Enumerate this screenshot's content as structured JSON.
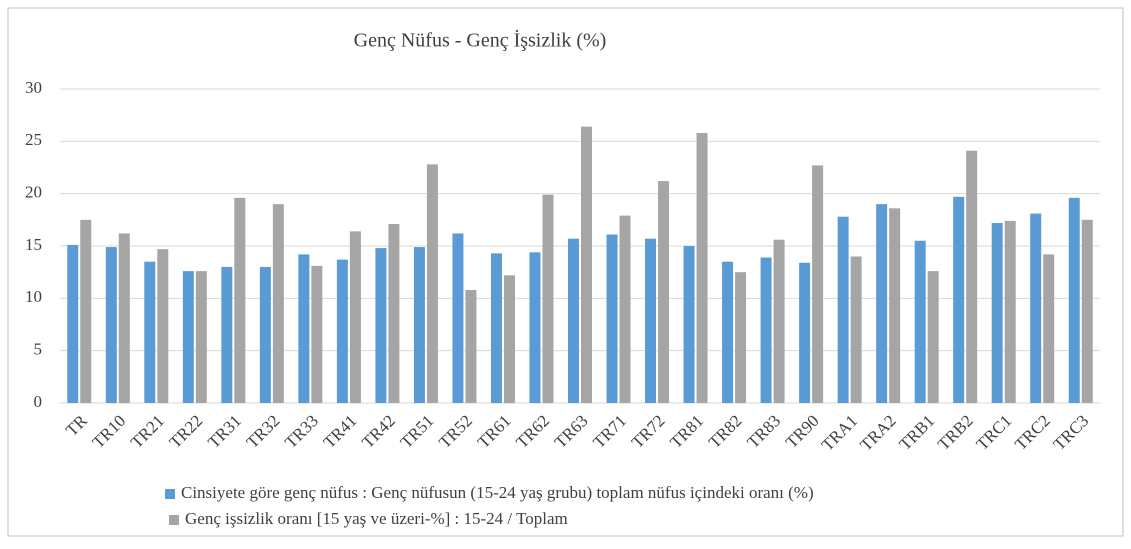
{
  "chart_data": {
    "type": "bar",
    "title": "Genç Nüfus - Genç İşsizlik (%)",
    "categories": [
      "TR",
      "TR10",
      "TR21",
      "TR22",
      "TR31",
      "TR32",
      "TR33",
      "TR41",
      "TR42",
      "TR51",
      "TR52",
      "TR61",
      "TR62",
      "TR63",
      "TR71",
      "TR72",
      "TR81",
      "TR82",
      "TR83",
      "TR90",
      "TRA1",
      "TRA2",
      "TRB1",
      "TRB2",
      "TRC1",
      "TRC2",
      "TRC3"
    ],
    "series": [
      {
        "name": "Cinsiyete göre genç nüfus : Genç nüfusun (15-24 yaş grubu) toplam nüfus içindeki oranı (%)",
        "color": "#5b9bd5",
        "values": [
          15.1,
          14.9,
          13.5,
          12.6,
          13.0,
          13.0,
          14.2,
          13.7,
          14.8,
          14.9,
          16.2,
          14.3,
          14.4,
          15.7,
          16.1,
          15.7,
          15.0,
          13.5,
          13.9,
          13.4,
          17.8,
          19.0,
          15.5,
          19.7,
          17.2,
          18.1,
          19.6
        ]
      },
      {
        "name": "Genç işsizlik oranı [15 yaş ve üzeri-%] : 15-24 / Toplam",
        "color": "#a5a5a5",
        "values": [
          17.5,
          16.2,
          14.7,
          12.6,
          19.6,
          19.0,
          13.1,
          16.4,
          17.1,
          22.8,
          10.8,
          12.2,
          19.9,
          26.4,
          17.9,
          21.2,
          25.8,
          12.5,
          15.6,
          22.7,
          14.0,
          18.6,
          12.6,
          24.1,
          17.4,
          14.2,
          17.5
        ]
      }
    ],
    "ylim": [
      0,
      30
    ],
    "yticks": [
      0,
      5,
      10,
      15,
      20,
      25,
      30
    ],
    "grid": true,
    "legend": "bottom"
  }
}
